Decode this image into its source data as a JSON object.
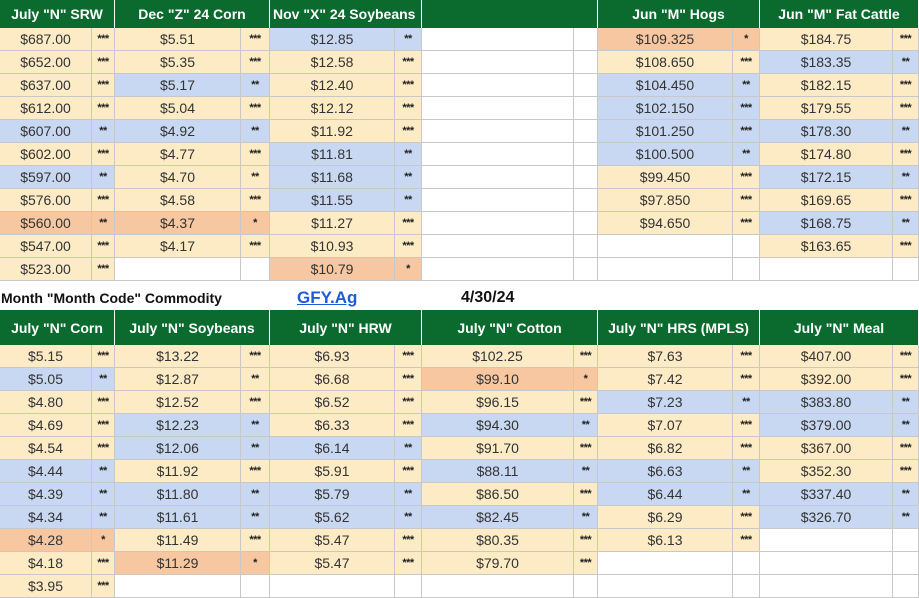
{
  "top": {
    "headers": [
      "July \"N\" SRW",
      "Dec \"Z\" 24 Corn",
      "Nov \"X\" 24 Soybeans",
      "",
      "Jun \"M\" Hogs",
      "Jun \"M\" Fat  Cattle"
    ],
    "rows": [
      [
        [
          "$687.00",
          "***",
          "y"
        ],
        [
          "$5.51",
          "***",
          "y"
        ],
        [
          "$12.85",
          "**",
          "b"
        ],
        null,
        [
          "$109.325",
          "*",
          "o"
        ],
        [
          "$184.75",
          "***",
          "y"
        ]
      ],
      [
        [
          "$652.00",
          "***",
          "y"
        ],
        [
          "$5.35",
          "***",
          "y"
        ],
        [
          "$12.58",
          "***",
          "y"
        ],
        null,
        [
          "$108.650",
          "***",
          "y"
        ],
        [
          "$183.35",
          "**",
          "b"
        ]
      ],
      [
        [
          "$637.00",
          "***",
          "y"
        ],
        [
          "$5.17",
          "**",
          "b"
        ],
        [
          "$12.40",
          "***",
          "y"
        ],
        null,
        [
          "$104.450",
          "**",
          "b"
        ],
        [
          "$182.15",
          "***",
          "y"
        ]
      ],
      [
        [
          "$612.00",
          "***",
          "y"
        ],
        [
          "$5.04",
          "***",
          "y"
        ],
        [
          "$12.12",
          "***",
          "y"
        ],
        null,
        [
          "$102.150",
          "***",
          "b"
        ],
        [
          "$179.55",
          "***",
          "y"
        ]
      ],
      [
        [
          "$607.00",
          "**",
          "b"
        ],
        [
          "$4.92",
          "**",
          "b"
        ],
        [
          "$11.92",
          "***",
          "y"
        ],
        null,
        [
          "$101.250",
          "***",
          "b"
        ],
        [
          "$178.30",
          "**",
          "b"
        ]
      ],
      [
        [
          "$602.00",
          "***",
          "y"
        ],
        [
          "$4.77",
          "***",
          "y"
        ],
        [
          "$11.81",
          "**",
          "b"
        ],
        null,
        [
          "$100.500",
          "**",
          "b"
        ],
        [
          "$174.80",
          "***",
          "y"
        ]
      ],
      [
        [
          "$597.00",
          "**",
          "b"
        ],
        [
          "$4.70",
          "**",
          "y"
        ],
        [
          "$11.68",
          "**",
          "b"
        ],
        null,
        [
          "$99.450",
          "***",
          "y"
        ],
        [
          "$172.15",
          "**",
          "b"
        ]
      ],
      [
        [
          "$576.00",
          "***",
          "y"
        ],
        [
          "$4.58",
          "***",
          "y"
        ],
        [
          "$11.55",
          "**",
          "b"
        ],
        null,
        [
          "$97.850",
          "***",
          "y"
        ],
        [
          "$169.65",
          "***",
          "y"
        ]
      ],
      [
        [
          "$560.00",
          "**",
          "o"
        ],
        [
          "$4.37",
          "*",
          "o"
        ],
        [
          "$11.27",
          "***",
          "y"
        ],
        null,
        [
          "$94.650",
          "***",
          "y"
        ],
        [
          "$168.75",
          "**",
          "b"
        ]
      ],
      [
        [
          "$547.00",
          "***",
          "y"
        ],
        [
          "$4.17",
          "***",
          "y"
        ],
        [
          "$10.93",
          "***",
          "y"
        ],
        null,
        null,
        [
          "$163.65",
          "***",
          "y"
        ]
      ],
      [
        [
          "$523.00",
          "***",
          "y"
        ],
        null,
        [
          "$10.79",
          "*",
          "o"
        ],
        null,
        null,
        null
      ]
    ]
  },
  "middle": {
    "label": "Month \"Month Code\" Commodity",
    "link": "GFY.Ag",
    "date": "4/30/24"
  },
  "bottom": {
    "headers": [
      "July \"N\" Corn",
      "July \"N\" Soybeans",
      "July \"N\" HRW",
      "July \"N\" Cotton",
      "July \"N\" HRS (MPLS)",
      "July \"N\" Meal"
    ],
    "rows": [
      [
        [
          "$5.15",
          "***",
          "y"
        ],
        [
          "$13.22",
          "***",
          "y"
        ],
        [
          "$6.93",
          "***",
          "y"
        ],
        [
          "$102.25",
          "***",
          "y"
        ],
        [
          "$7.63",
          "***",
          "y"
        ],
        [
          "$407.00",
          "***",
          "y"
        ]
      ],
      [
        [
          "$5.05",
          "**",
          "b"
        ],
        [
          "$12.87",
          "**",
          "y"
        ],
        [
          "$6.68",
          "***",
          "y"
        ],
        [
          "$99.10",
          "*",
          "o"
        ],
        [
          "$7.42",
          "***",
          "y"
        ],
        [
          "$392.00",
          "***",
          "y"
        ]
      ],
      [
        [
          "$4.80",
          "***",
          "y"
        ],
        [
          "$12.52",
          "***",
          "y"
        ],
        [
          "$6.52",
          "***",
          "y"
        ],
        [
          "$96.15",
          "***",
          "y"
        ],
        [
          "$7.23",
          "**",
          "b"
        ],
        [
          "$383.80",
          "**",
          "b"
        ]
      ],
      [
        [
          "$4.69",
          "***",
          "y"
        ],
        [
          "$12.23",
          "**",
          "b"
        ],
        [
          "$6.33",
          "***",
          "y"
        ],
        [
          "$94.30",
          "**",
          "b"
        ],
        [
          "$7.07",
          "***",
          "y"
        ],
        [
          "$379.00",
          "**",
          "b"
        ]
      ],
      [
        [
          "$4.54",
          "***",
          "y"
        ],
        [
          "$12.06",
          "**",
          "b"
        ],
        [
          "$6.14",
          "**",
          "b"
        ],
        [
          "$91.70",
          "***",
          "y"
        ],
        [
          "$6.82",
          "***",
          "y"
        ],
        [
          "$367.00",
          "***",
          "y"
        ]
      ],
      [
        [
          "$4.44",
          "**",
          "b"
        ],
        [
          "$11.92",
          "***",
          "y"
        ],
        [
          "$5.91",
          "***",
          "y"
        ],
        [
          "$88.11",
          "**",
          "b"
        ],
        [
          "$6.63",
          "**",
          "b"
        ],
        [
          "$352.30",
          "***",
          "y"
        ]
      ],
      [
        [
          "$4.39",
          "**",
          "b"
        ],
        [
          "$11.80",
          "**",
          "b"
        ],
        [
          "$5.79",
          "**",
          "b"
        ],
        [
          "$86.50",
          "***",
          "y"
        ],
        [
          "$6.44",
          "**",
          "b"
        ],
        [
          "$337.40",
          "**",
          "b"
        ]
      ],
      [
        [
          "$4.34",
          "**",
          "b"
        ],
        [
          "$11.61",
          "**",
          "b"
        ],
        [
          "$5.62",
          "**",
          "b"
        ],
        [
          "$82.45",
          "**",
          "b"
        ],
        [
          "$6.29",
          "***",
          "y"
        ],
        [
          "$326.70",
          "**",
          "b"
        ]
      ],
      [
        [
          "$4.28",
          "*",
          "o"
        ],
        [
          "$11.49",
          "***",
          "y"
        ],
        [
          "$5.47",
          "***",
          "y"
        ],
        [
          "$80.35",
          "***",
          "y"
        ],
        [
          "$6.13",
          "***",
          "y"
        ],
        null
      ],
      [
        [
          "$4.18",
          "***",
          "y"
        ],
        [
          "$11.29",
          "*",
          "o"
        ],
        [
          "$5.47",
          "***",
          "y"
        ],
        [
          "$79.70",
          "***",
          "y"
        ],
        null,
        null
      ],
      [
        [
          "$3.95",
          "***",
          "y"
        ],
        null,
        null,
        null,
        null,
        null
      ]
    ]
  }
}
